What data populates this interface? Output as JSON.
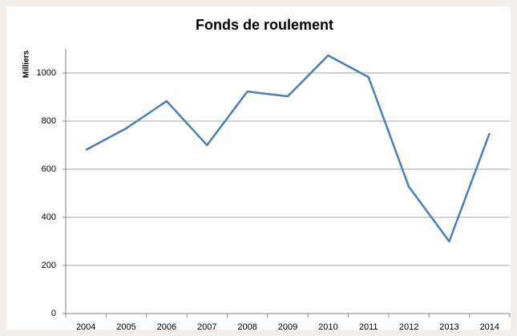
{
  "chart_data": {
    "type": "line",
    "title": "Fonds de roulement",
    "y_label": "Milliers",
    "categories": [
      "2004",
      "2005",
      "2006",
      "2007",
      "2008",
      "2009",
      "2010",
      "2011",
      "2012",
      "2013",
      "2014"
    ],
    "series": [
      {
        "name": "Fonds de roulement",
        "color": "#4a7ebb",
        "values": [
          680,
          770,
          883,
          700,
          923,
          903,
          1073,
          983,
          527,
          300,
          750
        ]
      }
    ],
    "ylim": [
      0,
      1100
    ],
    "yticks": [
      0,
      200,
      400,
      600,
      800,
      1000
    ],
    "grid": true
  }
}
